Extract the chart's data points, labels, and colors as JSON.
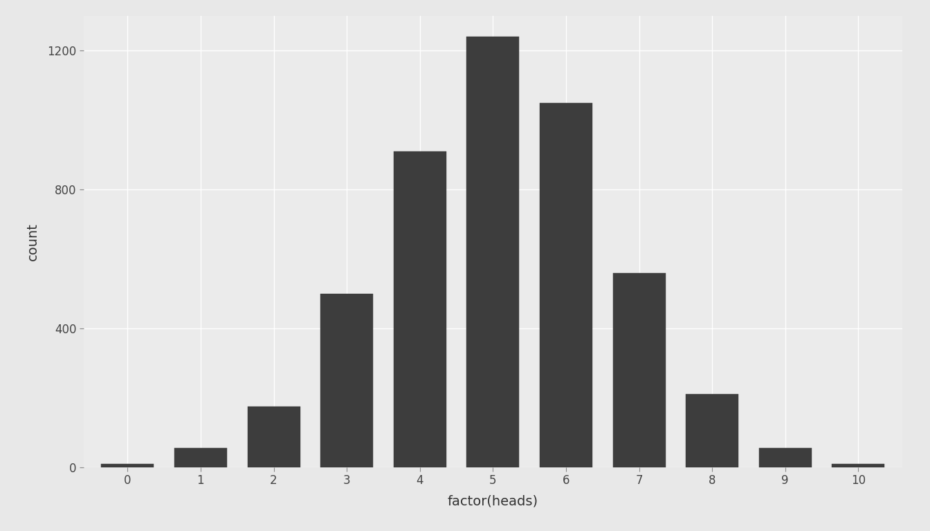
{
  "categories": [
    0,
    1,
    2,
    3,
    4,
    5,
    6,
    7,
    8,
    9,
    10
  ],
  "values": [
    10,
    55,
    175,
    500,
    910,
    1240,
    1050,
    560,
    210,
    55,
    10
  ],
  "bar_color": "#3d3d3d",
  "bar_edge_color": "#3d3d3d",
  "xlabel": "factor(heads)",
  "ylabel": "count",
  "title": "",
  "ylim": [
    0,
    1300
  ],
  "yticks": [
    0,
    400,
    800,
    1200
  ],
  "panel_background": "#ebebeb",
  "outer_background": "#e8e8e8",
  "grid_color": "#ffffff",
  "xlabel_fontsize": 14,
  "ylabel_fontsize": 14,
  "tick_fontsize": 12,
  "bar_width": 0.72
}
